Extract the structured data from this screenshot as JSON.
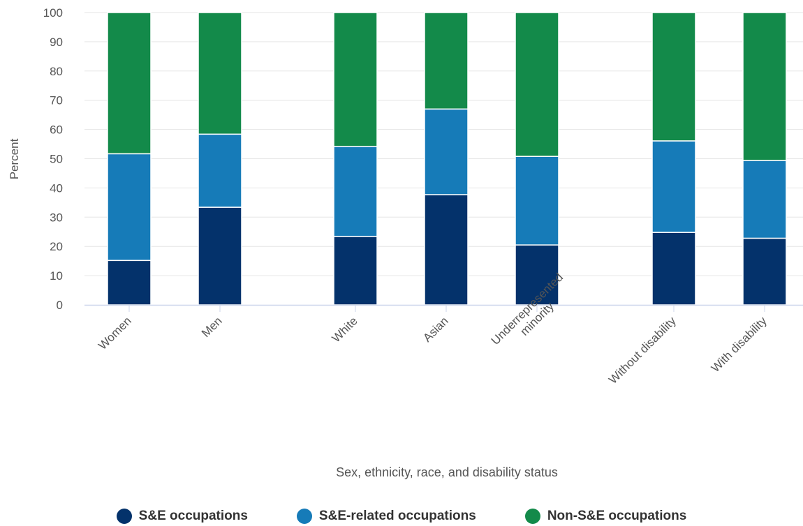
{
  "chart_data": {
    "type": "bar",
    "stacked": true,
    "title": "",
    "xlabel": "Sex, ethnicity, race, and disability status",
    "ylabel": "Percent",
    "ylim": [
      0,
      100
    ],
    "yticks": [
      0,
      10,
      20,
      30,
      40,
      50,
      60,
      70,
      80,
      90,
      100
    ],
    "grid": true,
    "legend_position": "bottom",
    "categories": [
      "Women",
      "Men",
      "White",
      "Asian",
      "Underrepresented minority",
      "Without disability",
      "With disability"
    ],
    "category_groups": [
      [
        0,
        1
      ],
      [
        2,
        3,
        4
      ],
      [
        5,
        6
      ]
    ],
    "series": [
      {
        "name": "S&E occupations",
        "color": "#04326b",
        "values": [
          15.2,
          33.4,
          23.4,
          37.7,
          20.5,
          24.8,
          22.8
        ]
      },
      {
        "name": "S&E-related occupations",
        "color": "#167bb8",
        "values": [
          36.5,
          25.0,
          30.8,
          29.3,
          30.3,
          31.3,
          26.6
        ]
      },
      {
        "name": "Non-S&E occupations",
        "color": "#138a4a",
        "values": [
          48.3,
          41.6,
          45.8,
          33.0,
          49.2,
          43.9,
          50.6
        ]
      }
    ]
  },
  "colors": {
    "grid": "#e6e6e6",
    "axis": "#ccd6eb",
    "text": "#555555",
    "legend_text": "#333333"
  }
}
